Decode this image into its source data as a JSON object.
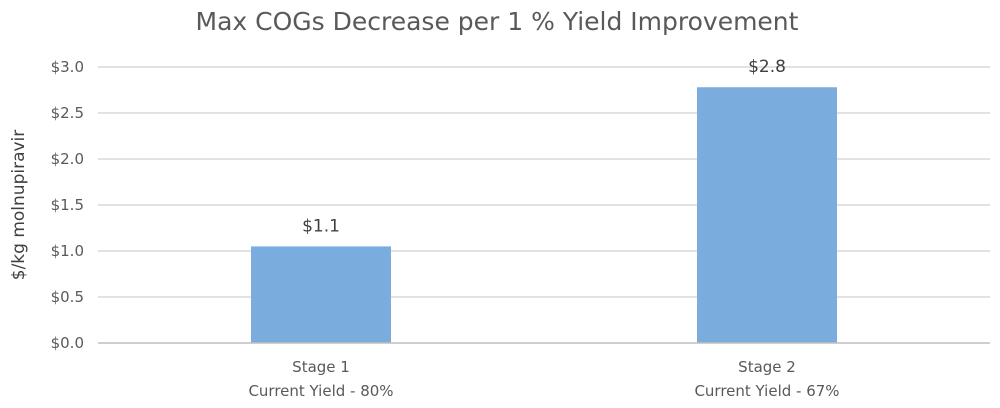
{
  "chart_data": {
    "type": "bar",
    "title": "Max COGs Decrease per 1 % Yield Improvement",
    "xlabel": "",
    "ylabel": "$/kg molnupiravir",
    "categories": [
      [
        "Stage 1",
        "Current Yield - 80%"
      ],
      [
        "Stage 2",
        "Current Yield - 67%"
      ]
    ],
    "values": [
      1.05,
      2.78
    ],
    "data_labels": [
      "$1.1",
      "$2.8"
    ],
    "ylim": [
      0,
      3.0
    ],
    "yticks": [
      0,
      0.5,
      1.0,
      1.5,
      2.0,
      2.5,
      3.0
    ],
    "ytick_labels": [
      "$0.0",
      "$0.5",
      "$1.0",
      "$1.5",
      "$2.0",
      "$2.5",
      "$3.0"
    ],
    "grid": true,
    "legend": "none",
    "colors": {
      "bar": "#7aaddd",
      "grid": "#d9d9d9",
      "axis": "#bfbfbf",
      "text": "#595959"
    }
  }
}
